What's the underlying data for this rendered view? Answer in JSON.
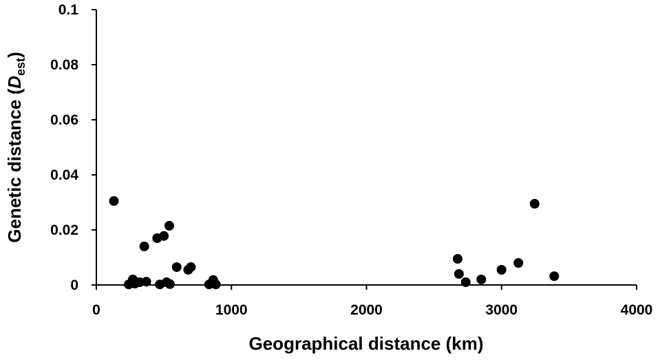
{
  "chart_data": {
    "type": "scatter",
    "xlabel": "Geographical distance (km)",
    "ylabel": {
      "prefix": "Genetic distance (",
      "var": "D",
      "sub": "est",
      "suffix": ")"
    },
    "xlim": [
      0,
      4000
    ],
    "ylim": [
      0,
      0.1
    ],
    "x_ticks": [
      0,
      1000,
      2000,
      3000,
      4000
    ],
    "x_tick_labels": [
      "0",
      "1000",
      "2000",
      "3000",
      "4000"
    ],
    "y_ticks": [
      0,
      0.02,
      0.04,
      0.06,
      0.08,
      0.1
    ],
    "y_tick_labels": [
      "0",
      "0.02",
      "0.04",
      "0.06",
      "0.08",
      "0.1"
    ],
    "grid": false,
    "legend": "none",
    "marker_color": "#000000",
    "points": [
      {
        "x": 130,
        "y": 0.0305
      },
      {
        "x": 240,
        "y": 0.0002
      },
      {
        "x": 270,
        "y": 0.002
      },
      {
        "x": 285,
        "y": 0.0005
      },
      {
        "x": 320,
        "y": 0.001
      },
      {
        "x": 355,
        "y": 0.014
      },
      {
        "x": 370,
        "y": 0.0012
      },
      {
        "x": 450,
        "y": 0.017
      },
      {
        "x": 470,
        "y": 0.0002
      },
      {
        "x": 500,
        "y": 0.0178
      },
      {
        "x": 520,
        "y": 0.001
      },
      {
        "x": 540,
        "y": 0.0215
      },
      {
        "x": 545,
        "y": 0.0003
      },
      {
        "x": 595,
        "y": 0.0065
      },
      {
        "x": 680,
        "y": 0.0055
      },
      {
        "x": 700,
        "y": 0.0065
      },
      {
        "x": 835,
        "y": 0.0002
      },
      {
        "x": 865,
        "y": 0.0018
      },
      {
        "x": 885,
        "y": 0.0002
      },
      {
        "x": 2675,
        "y": 0.0095
      },
      {
        "x": 2685,
        "y": 0.004
      },
      {
        "x": 2735,
        "y": 0.001
      },
      {
        "x": 2850,
        "y": 0.002
      },
      {
        "x": 3000,
        "y": 0.0055
      },
      {
        "x": 3125,
        "y": 0.008
      },
      {
        "x": 3245,
        "y": 0.0295
      },
      {
        "x": 3390,
        "y": 0.0032
      }
    ]
  }
}
